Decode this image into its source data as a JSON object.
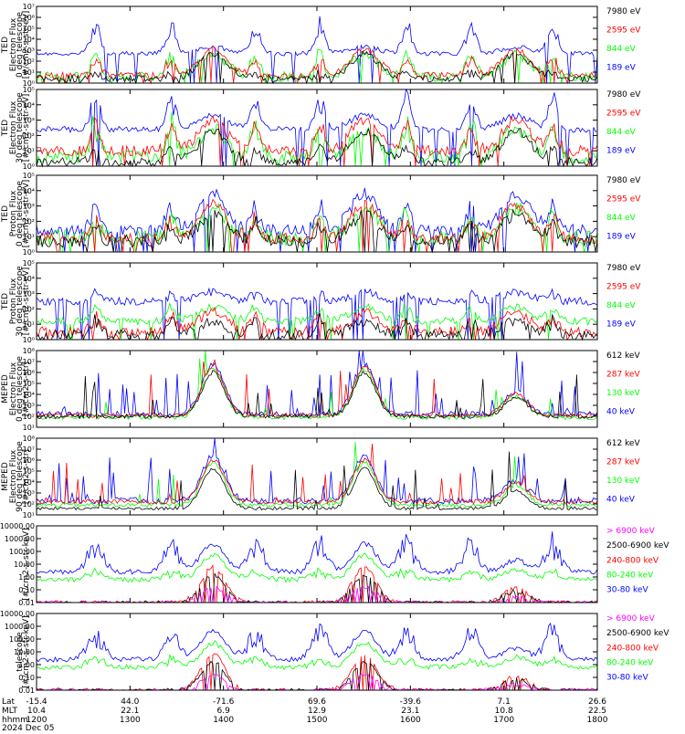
{
  "colors": {
    "black": "#000000",
    "blue": "#0000ff",
    "red": "#ff0000",
    "green": "#00ff00",
    "magenta": "#ff00ff"
  },
  "chart_data": [
    {
      "type": "line",
      "instrument_label": "TED",
      "quantity_label": "Electron Flux",
      "telescope_label": "0 deg telescope",
      "units_label": "[#/cm2-s-str-eV]",
      "y_scale": "log",
      "ylim": [
        1,
        10000000
      ],
      "y_ticks": [
        {
          "value": 1,
          "label": "10⁰"
        },
        {
          "value": 10,
          "label": "10¹"
        },
        {
          "value": 100,
          "label": "10²"
        },
        {
          "value": 1000,
          "label": "10³"
        },
        {
          "value": 10000,
          "label": "10⁴"
        },
        {
          "value": 100000,
          "label": "10⁵"
        },
        {
          "value": 1000000,
          "label": "10⁶"
        },
        {
          "value": 10000000,
          "label": "10⁷"
        }
      ],
      "legend": [
        {
          "label": "7980 eV",
          "color": "#000000"
        },
        {
          "label": "2595 eV",
          "color": "#ff0000"
        },
        {
          "label": "844 eV",
          "color": "#00ff00"
        },
        {
          "label": "189 eV",
          "color": "#0000ff"
        }
      ]
    },
    {
      "type": "line",
      "instrument_label": "TED",
      "quantity_label": "Electron Flux",
      "telescope_label": "30 deg telescope",
      "units_label": "[#/cm2-s-str-eV]",
      "y_scale": "log",
      "ylim": [
        1,
        100000
      ],
      "y_ticks": [
        {
          "value": 1,
          "label": "10⁰"
        },
        {
          "value": 10,
          "label": "10¹"
        },
        {
          "value": 100,
          "label": "10²"
        },
        {
          "value": 1000,
          "label": "10³"
        },
        {
          "value": 10000,
          "label": "10⁴"
        },
        {
          "value": 100000,
          "label": "10⁵"
        }
      ],
      "legend": [
        {
          "label": "7980 eV",
          "color": "#000000"
        },
        {
          "label": "2595 eV",
          "color": "#ff0000"
        },
        {
          "label": "844 eV",
          "color": "#00ff00"
        },
        {
          "label": "189 eV",
          "color": "#0000ff"
        }
      ]
    },
    {
      "type": "line",
      "instrument_label": "TED",
      "quantity_label": "Proton Flux",
      "telescope_label": "0 deg telescope",
      "units_label": "[#/cm2-s-str-eV]",
      "y_scale": "log",
      "ylim": [
        1,
        100000
      ],
      "y_ticks": [
        {
          "value": 1,
          "label": "10⁰"
        },
        {
          "value": 10,
          "label": "10¹"
        },
        {
          "value": 100,
          "label": "10²"
        },
        {
          "value": 1000,
          "label": "10³"
        },
        {
          "value": 10000,
          "label": "10⁴"
        },
        {
          "value": 100000,
          "label": "10⁵"
        }
      ],
      "legend": [
        {
          "label": "7980 eV",
          "color": "#000000"
        },
        {
          "label": "2595 eV",
          "color": "#ff0000"
        },
        {
          "label": "844 eV",
          "color": "#00ff00"
        },
        {
          "label": "189 eV",
          "color": "#0000ff"
        }
      ]
    },
    {
      "type": "line",
      "instrument_label": "TED",
      "quantity_label": "Proton Flux",
      "telescope_label": "30 deg telescope",
      "units_label": "[#/cm2-s-str-eV]",
      "y_scale": "log",
      "ylim": [
        1,
        100000
      ],
      "y_ticks": [
        {
          "value": 1,
          "label": "10⁰"
        },
        {
          "value": 10,
          "label": "10¹"
        },
        {
          "value": 100,
          "label": "10²"
        },
        {
          "value": 1000,
          "label": "10³"
        },
        {
          "value": 10000,
          "label": "10⁴"
        },
        {
          "value": 100000,
          "label": "10⁵"
        }
      ],
      "legend": [
        {
          "label": "7980 eV",
          "color": "#000000"
        },
        {
          "label": "2595 eV",
          "color": "#ff0000"
        },
        {
          "label": "844 eV",
          "color": "#00ff00"
        },
        {
          "label": "189 eV",
          "color": "#0000ff"
        }
      ]
    },
    {
      "type": "line",
      "instrument_label": "MEPED",
      "quantity_label": "Electron Flux",
      "telescope_label": "0 deg telescope",
      "units_label": "[#/cm2-s-str]",
      "y_scale": "log",
      "ylim": [
        10,
        100000000
      ],
      "y_ticks": [
        {
          "value": 10,
          "label": "10¹"
        },
        {
          "value": 100,
          "label": "10²"
        },
        {
          "value": 1000,
          "label": "10³"
        },
        {
          "value": 10000,
          "label": "10⁴"
        },
        {
          "value": 100000,
          "label": "10⁵"
        },
        {
          "value": 1000000,
          "label": "10⁶"
        },
        {
          "value": 10000000,
          "label": "10⁷"
        },
        {
          "value": 100000000,
          "label": "10⁸"
        }
      ],
      "legend": [
        {
          "label": "612 keV",
          "color": "#000000"
        },
        {
          "label": "287 keV",
          "color": "#ff0000"
        },
        {
          "label": "130 keV",
          "color": "#00ff00"
        },
        {
          "label": "40 keV",
          "color": "#0000ff"
        }
      ]
    },
    {
      "type": "line",
      "instrument_label": "MEPED",
      "quantity_label": "Electron Flux",
      "telescope_label": "90 deg telescope",
      "units_label": "[#/cm2-s-str]",
      "y_scale": "log",
      "ylim": [
        10,
        100000000
      ],
      "y_ticks": [
        {
          "value": 10,
          "label": "10¹"
        },
        {
          "value": 100,
          "label": "10²"
        },
        {
          "value": 1000,
          "label": "10³"
        },
        {
          "value": 10000,
          "label": "10⁴"
        },
        {
          "value": 100000,
          "label": "10⁵"
        },
        {
          "value": 1000000,
          "label": "10⁶"
        },
        {
          "value": 10000000,
          "label": "10⁷"
        },
        {
          "value": 100000000,
          "label": "10⁸"
        }
      ],
      "legend": [
        {
          "label": "612 keV",
          "color": "#000000"
        },
        {
          "label": "287 keV",
          "color": "#ff0000"
        },
        {
          "label": "130 keV",
          "color": "#00ff00"
        },
        {
          "label": "40 keV",
          "color": "#0000ff"
        }
      ]
    },
    {
      "type": "line",
      "instrument_label": "",
      "quantity_label": "",
      "telescope_label": "",
      "units_label": "[#/cm2-s-str-keV]",
      "y_scale": "log",
      "ylim": [
        0.01,
        10000
      ],
      "y_ticks": [
        {
          "value": 0.01,
          "label": "0.01"
        },
        {
          "value": 0.1,
          "label": "0.10"
        },
        {
          "value": 1,
          "label": "1.00"
        },
        {
          "value": 10,
          "label": "10.00"
        },
        {
          "value": 100,
          "label": "100.00"
        },
        {
          "value": 1000,
          "label": "1000.00"
        },
        {
          "value": 10000,
          "label": "10000.00"
        }
      ],
      "legend": [
        {
          "label": "> 6900 keV",
          "color": "#ff00ff"
        },
        {
          "label": "2500-6900 keV",
          "color": "#000000"
        },
        {
          "label": "240-800 keV",
          "color": "#ff0000"
        },
        {
          "label": "80-240 keV",
          "color": "#00ff00"
        },
        {
          "label": "30-80 keV",
          "color": "#0000ff"
        }
      ]
    },
    {
      "type": "line",
      "instrument_label": "",
      "quantity_label": "",
      "telescope_label": "telescope",
      "units_label": "[#/cm2-s-str-keV]",
      "y_scale": "log",
      "ylim": [
        0.01,
        10000
      ],
      "y_ticks": [
        {
          "value": 0.01,
          "label": "0.01"
        },
        {
          "value": 0.1,
          "label": "0.10"
        },
        {
          "value": 1,
          "label": "1.00"
        },
        {
          "value": 10,
          "label": "10.00"
        },
        {
          "value": 100,
          "label": "100.00"
        },
        {
          "value": 1000,
          "label": "1000.00"
        },
        {
          "value": 10000,
          "label": "10000.00"
        }
      ],
      "legend": [
        {
          "label": "> 6900 keV",
          "color": "#ff00ff"
        },
        {
          "label": "2500-6900 keV",
          "color": "#000000"
        },
        {
          "label": "240-800 keV",
          "color": "#ff0000"
        },
        {
          "label": "80-240 keV",
          "color": "#00ff00"
        },
        {
          "label": "30-80 keV",
          "color": "#0000ff"
        }
      ]
    }
  ],
  "time_axis": {
    "row_labels": [
      "Lat",
      "MLT",
      "hhmm"
    ],
    "date_label": "2024 Dec 05",
    "ticks": [
      {
        "hhmm": "1200",
        "lat": "-15.4",
        "mlt": "10.4"
      },
      {
        "hhmm": "1300",
        "lat": "44.0",
        "mlt": "22.1"
      },
      {
        "hhmm": "1400",
        "lat": "-71.6",
        "mlt": "6.9"
      },
      {
        "hhmm": "1500",
        "lat": "69.6",
        "mlt": "12.9"
      },
      {
        "hhmm": "1600",
        "lat": "-39.6",
        "mlt": "23.1"
      },
      {
        "hhmm": "1700",
        "lat": "7.1",
        "mlt": "10.8"
      },
      {
        "hhmm": "1800",
        "lat": "26.6",
        "mlt": "22.5"
      }
    ]
  }
}
